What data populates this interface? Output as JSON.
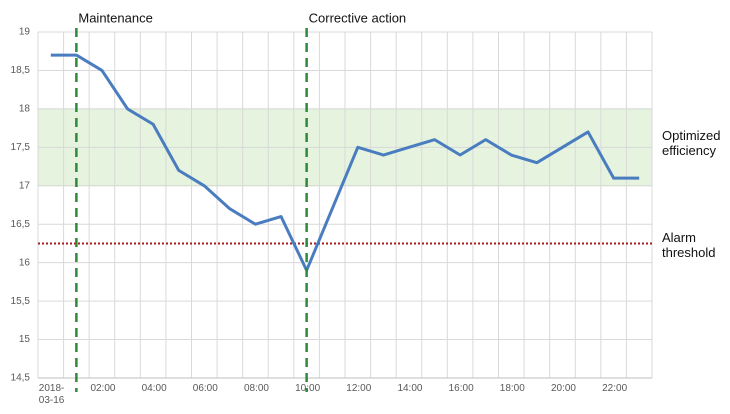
{
  "chart_data": {
    "type": "line",
    "categories": [
      "2018-03-16",
      null,
      "02:00",
      null,
      "04:00",
      null,
      "06:00",
      null,
      "08:00",
      null,
      "10:00",
      null,
      "12:00",
      null,
      "14:00",
      null,
      "16:00",
      null,
      "18:00",
      null,
      "20:00",
      null,
      "22:00",
      null
    ],
    "values": [
      18.7,
      18.7,
      18.5,
      18.0,
      17.8,
      17.2,
      17.0,
      16.7,
      16.5,
      16.6,
      15.9,
      16.7,
      17.5,
      17.4,
      17.5,
      17.6,
      17.4,
      17.6,
      17.4,
      17.3,
      17.5,
      17.7,
      17.1,
      17.1
    ],
    "color": "#4a7dbf",
    "ylim": [
      14.5,
      19
    ],
    "yticks": [
      {
        "value": 14.5,
        "label": "14,5"
      },
      15,
      {
        "value": 15.5,
        "label": "15,5"
      },
      16,
      {
        "value": 16.5,
        "label": "16,5"
      },
      17,
      {
        "value": 17.5,
        "label": "17,5"
      },
      18,
      {
        "value": 18.5,
        "label": "18,5"
      },
      19
    ],
    "grid": true,
    "bands": [
      {
        "label": "Optimized efficiency",
        "from": 17,
        "to": 18,
        "color": "#e6f3df"
      }
    ],
    "hlines": [
      {
        "label": "Alarm threshold",
        "value": 16.25,
        "color": "#a61c1c"
      }
    ],
    "vlines": [
      {
        "label": "Maintenance",
        "x": 1,
        "color": "#2e8b3a"
      },
      {
        "label": "Corrective action",
        "x": 10,
        "color": "#2e8b3a"
      }
    ]
  }
}
